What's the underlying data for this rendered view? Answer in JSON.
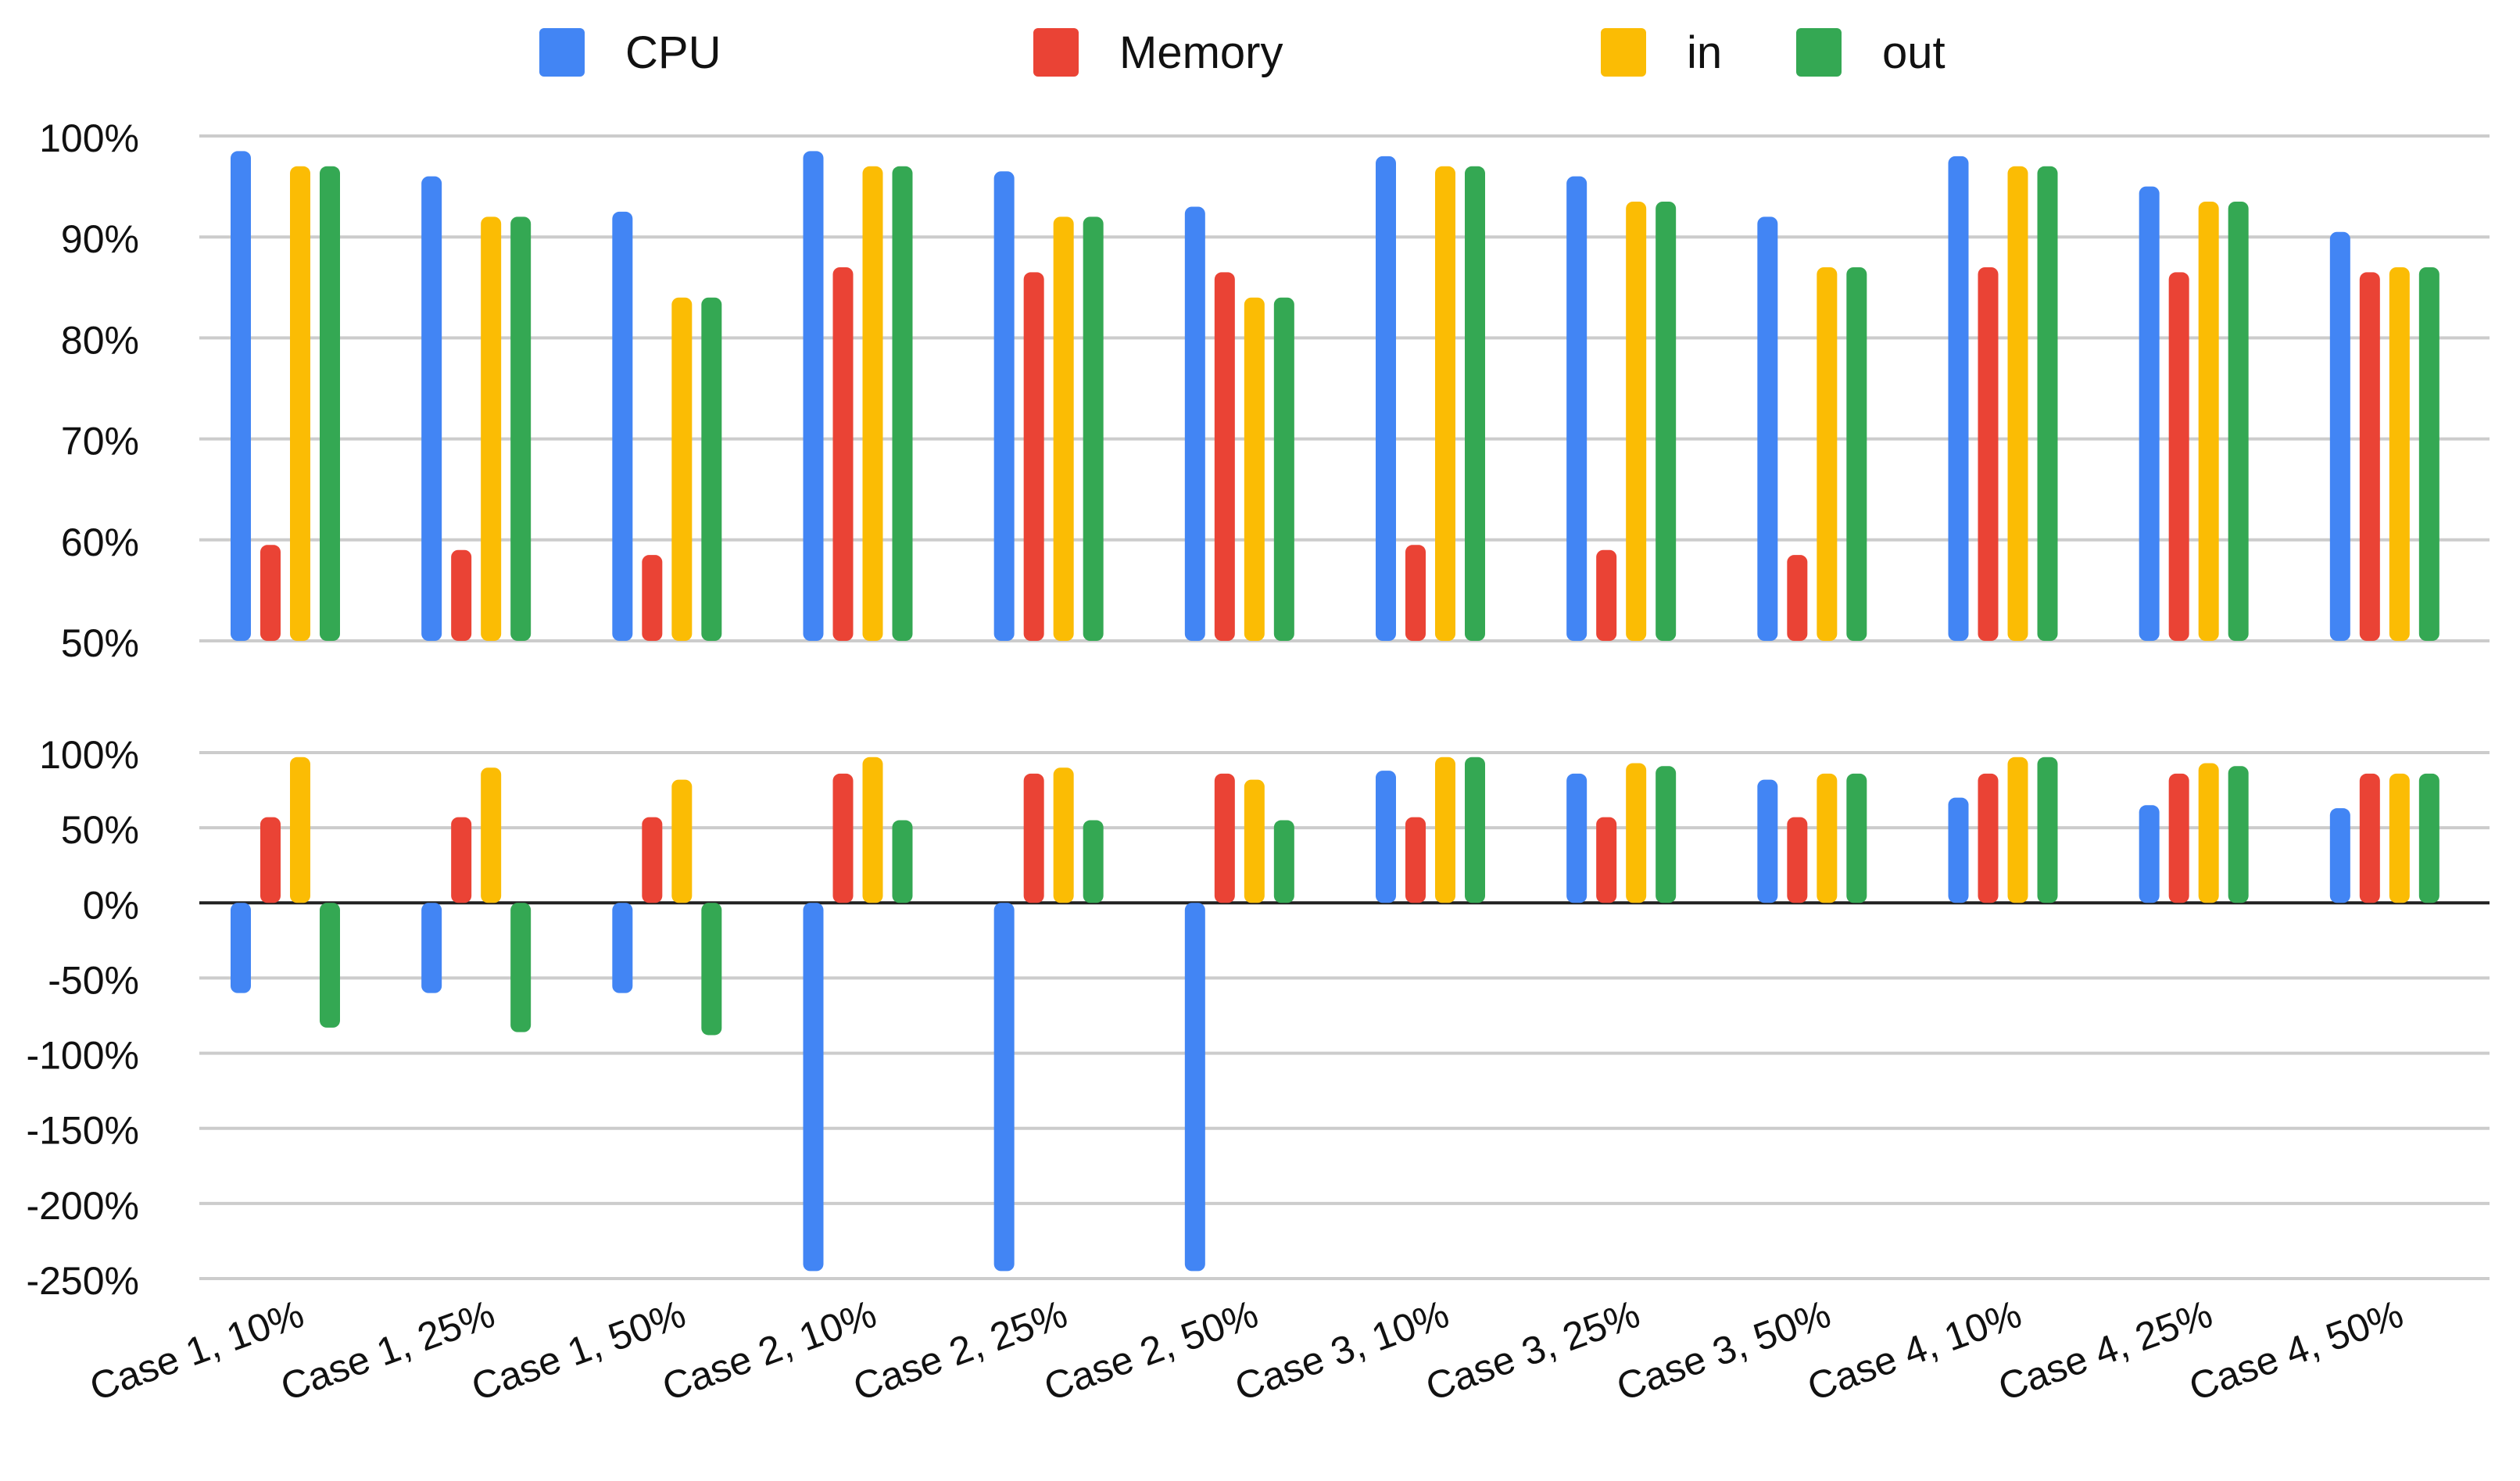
{
  "colors": {
    "cpu": "#4285F4",
    "memory": "#EA4335",
    "in": "#FBBC04",
    "out": "#34A853",
    "grid": "#cccccc",
    "zero_line": "#222222",
    "text": "#111111"
  },
  "chart_data": [
    {
      "type": "bar",
      "title": "",
      "xlabel": "",
      "ylabel": "",
      "ylim": [
        50,
        100
      ],
      "yticks": [
        50,
        60,
        70,
        80,
        90,
        100
      ],
      "tick_labels": [
        "50%",
        "60%",
        "70%",
        "80%",
        "90%",
        "100%"
      ],
      "grid": true,
      "legend": "top-center",
      "categories": [
        "Case 1, 10%",
        "Case 1, 25%",
        "Case 1, 50%",
        "Case 2, 10%",
        "Case 2, 25%",
        "Case 2, 50%",
        "Case 3, 10%",
        "Case 3, 25%",
        "Case 3, 50%",
        "Case 4, 10%",
        "Case 4, 25%",
        "Case 4, 50%"
      ],
      "series": [
        {
          "name": "CPU",
          "color_key": "cpu",
          "values": [
            98.5,
            96,
            92.5,
            98.5,
            96.5,
            93,
            98,
            96,
            92,
            98,
            95,
            90.5
          ]
        },
        {
          "name": "Memory",
          "color_key": "memory",
          "values": [
            59.5,
            59,
            58.5,
            87,
            86.5,
            86.5,
            59.5,
            59,
            58.5,
            87,
            86.5,
            86.5
          ]
        },
        {
          "name": "in",
          "color_key": "in",
          "values": [
            97,
            92,
            84,
            97,
            92,
            84,
            97,
            93.5,
            87,
            97,
            93.5,
            87
          ]
        },
        {
          "name": "out",
          "color_key": "out",
          "values": [
            97,
            92,
            84,
            97,
            92,
            84,
            97,
            93.5,
            87,
            97,
            93.5,
            87
          ]
        }
      ]
    },
    {
      "type": "bar",
      "title": "",
      "xlabel": "",
      "ylabel": "",
      "ylim": [
        -250,
        100
      ],
      "yticks": [
        100,
        50,
        0,
        -50,
        -100,
        -150,
        -200,
        -250
      ],
      "tick_labels": [
        "100%",
        "50%",
        "0%",
        "-50%",
        "-100%",
        "-150%",
        "-200%",
        "-250%"
      ],
      "grid": true,
      "categories": [
        "Case 1, 10%",
        "Case 1, 25%",
        "Case 1, 50%",
        "Case 2, 10%",
        "Case 2, 25%",
        "Case 2, 50%",
        "Case 3, 10%",
        "Case 3, 25%",
        "Case 3, 50%",
        "Case 4, 10%",
        "Case 4, 25%",
        "Case 4, 50%"
      ],
      "series": [
        {
          "name": "CPU",
          "color_key": "cpu",
          "values": [
            -60,
            -60,
            -60,
            -245,
            -245,
            -245,
            88,
            86,
            82,
            70,
            65,
            63
          ]
        },
        {
          "name": "Memory",
          "color_key": "memory",
          "values": [
            57,
            57,
            57,
            86,
            86,
            86,
            57,
            57,
            57,
            86,
            86,
            86
          ]
        },
        {
          "name": "in",
          "color_key": "in",
          "values": [
            97,
            90,
            82,
            97,
            90,
            82,
            97,
            93,
            86,
            97,
            93,
            86
          ]
        },
        {
          "name": "out",
          "color_key": "out",
          "values": [
            -83,
            -86,
            -88,
            55,
            55,
            55,
            97,
            91,
            86,
            97,
            91,
            86
          ]
        }
      ]
    }
  ]
}
